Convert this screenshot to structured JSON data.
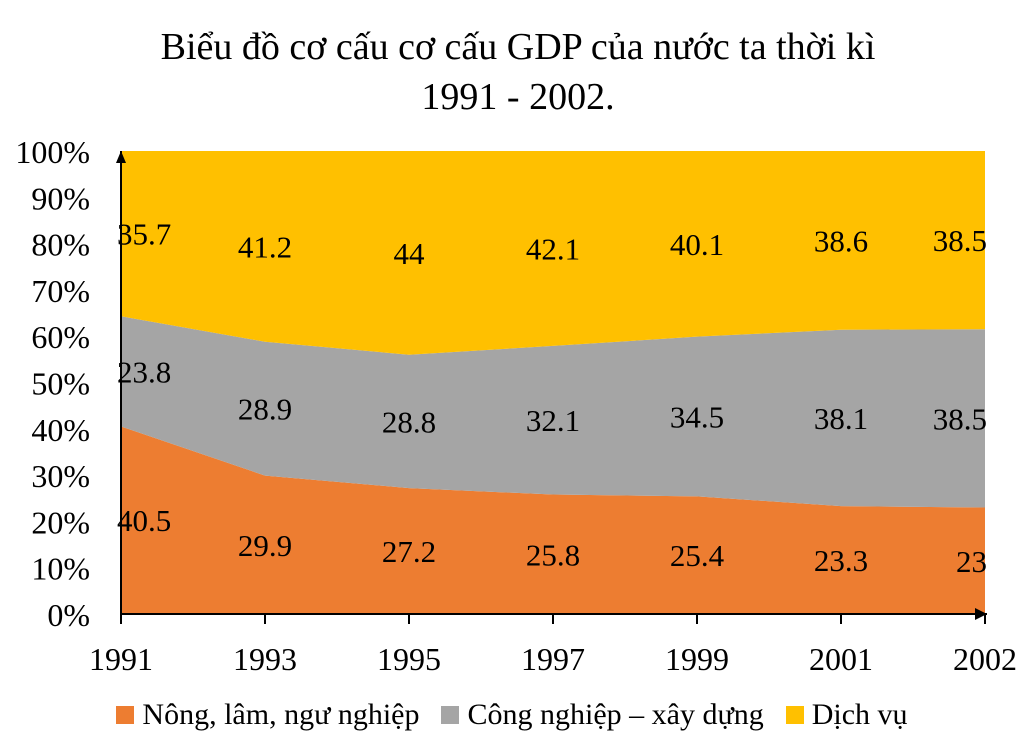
{
  "chart_data": {
    "type": "area",
    "stacked": "percent",
    "title_lines": [
      "Biểu đồ cơ cấu cơ cấu GDP của nước ta thời kì",
      "1991 - 2002."
    ],
    "x": [
      "1991",
      "1993",
      "1995",
      "1997",
      "1999",
      "2001",
      "2002"
    ],
    "y_ticks": [
      "0%",
      "10%",
      "20%",
      "30%",
      "40%",
      "50%",
      "60%",
      "70%",
      "80%",
      "90%",
      "100%"
    ],
    "ylim": [
      0,
      100
    ],
    "series": [
      {
        "name": "Nông, lâm, ngư nghiệp",
        "color": "#ED7D31",
        "label_color": "#000000",
        "values": [
          40.5,
          29.9,
          27.2,
          25.8,
          25.4,
          23.3,
          23
        ],
        "labels": [
          "40.5",
          "29.9",
          "27.2",
          "25.8",
          "25.4",
          "23.3",
          "23"
        ]
      },
      {
        "name": "Công nghiệp – xây dựng",
        "color": "#A5A5A5",
        "label_color": "#000000",
        "values": [
          23.8,
          28.9,
          28.8,
          32.1,
          34.5,
          38.1,
          38.5
        ],
        "labels": [
          "23.8",
          "28.9",
          "28.8",
          "32.1",
          "34.5",
          "38.1",
          "38.5"
        ]
      },
      {
        "name": "Dịch vụ",
        "color": "#FFC000",
        "label_color": "#000000",
        "values": [
          35.7,
          41.2,
          44,
          42.1,
          40.1,
          38.6,
          38.5
        ],
        "labels": [
          "35.7",
          "41.2",
          "44",
          "42.1",
          "40.1",
          "38.6",
          "38.5"
        ]
      }
    ],
    "legend_position": "bottom",
    "grid": false
  }
}
